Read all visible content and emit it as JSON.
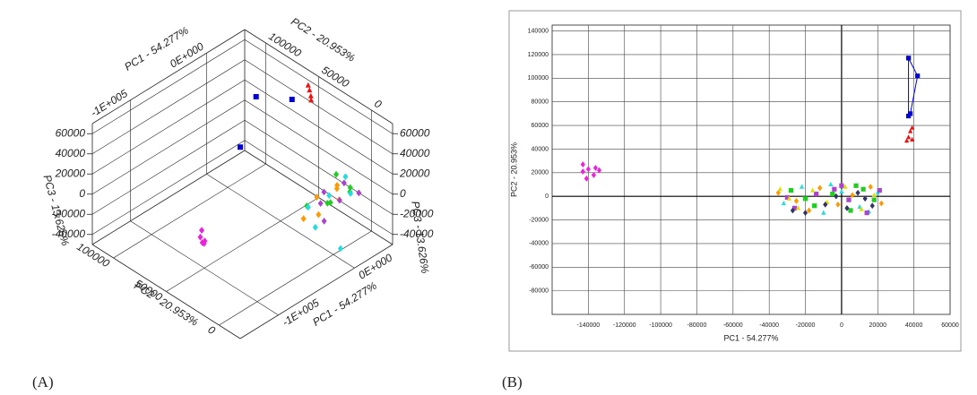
{
  "chart_data": [
    {
      "type": "scatter3d",
      "panel_label": "(A)",
      "xlabel": "PC1 - 54.277%",
      "ylabel": "PC2 - 20.953%",
      "zlabel": "PC3 - 13.626%",
      "xlim": [
        -150000,
        50000
      ],
      "xticks": [
        {
          "value": -100000,
          "label": "-1E+005"
        },
        {
          "value": 0,
          "label": "0E+000"
        }
      ],
      "ylim": [
        -20000,
        120000
      ],
      "yticks": [
        0,
        50000,
        100000
      ],
      "zlim": [
        -50000,
        70000
      ],
      "zticks": [
        -40000,
        -20000,
        0,
        20000,
        40000,
        60000
      ],
      "grid": true,
      "series": [
        {
          "color": "#0000dd",
          "marker": "square",
          "x": [
            40000,
            40000,
            40000
          ],
          "y": [
            117000,
            102000,
            68000
          ],
          "z": [
            -40000,
            20000,
            40000
          ]
        },
        {
          "color": "#ee1111",
          "marker": "triangle",
          "x": [
            38000,
            37000,
            39000,
            36000
          ],
          "y": [
            50000,
            48000,
            52000,
            47000
          ],
          "z": [
            62000,
            58000,
            65000,
            55000
          ]
        },
        {
          "color": "#ee22dd",
          "marker": "diamond",
          "x": [
            -140000,
            -137000,
            -134000,
            -142000,
            -136000
          ],
          "y": [
            25000,
            23000,
            28000,
            20000,
            26000
          ],
          "z": [
            16000,
            12000,
            18000,
            14000,
            8000
          ]
        },
        {
          "color": "#22cc22",
          "marker": "diamond",
          "x": [
            -28000,
            -15000,
            -5000,
            5000,
            12000,
            18000
          ],
          "y": [
            5000,
            -8000,
            2000,
            -12000,
            6000,
            -3000
          ],
          "z": [
            8000,
            14000,
            2000,
            18000,
            20000,
            10000
          ]
        },
        {
          "color": "#22dddd",
          "marker": "diamond",
          "x": [
            -32000,
            -22000,
            -10000,
            0,
            10000,
            20000
          ],
          "y": [
            -6000,
            8000,
            -14000,
            4000,
            -9000,
            3000
          ],
          "z": [
            -4000,
            2000,
            -30000,
            6000,
            12000,
            16000
          ]
        },
        {
          "color": "#ff9900",
          "marker": "diamond",
          "x": [
            -35000,
            -25000,
            -12000,
            -2000,
            6000,
            16000
          ],
          "y": [
            3000,
            -4000,
            7000,
            -7000,
            1000,
            8000
          ],
          "z": [
            0,
            4000,
            8000,
            10000,
            12000,
            6000
          ]
        },
        {
          "color": "#aa44cc",
          "marker": "diamond",
          "x": [
            -26000,
            -14000,
            -4000,
            4000,
            14000,
            21000
          ],
          "y": [
            -10000,
            2000,
            6000,
            -3000,
            -14000,
            5000
          ],
          "z": [
            2000,
            6000,
            10000,
            4000,
            14000,
            8000
          ]
        }
      ]
    },
    {
      "type": "scatter",
      "panel_label": "(B)",
      "xlabel": "PC1 - 54.277%",
      "ylabel": "PC2 - 20.953%",
      "xlim": [
        -160000,
        60000
      ],
      "xticks": [
        -140000,
        -120000,
        -100000,
        -80000,
        -60000,
        -40000,
        -20000,
        0,
        20000,
        40000,
        60000
      ],
      "ylim": [
        -100000,
        145000
      ],
      "yticks": [
        140000,
        120000,
        100000,
        80000,
        60000,
        40000,
        20000,
        0,
        -20000,
        -40000,
        -60000,
        -80000
      ],
      "grid": true,
      "series": [
        {
          "color": "#0000dd",
          "marker": "square",
          "line": true,
          "x": [
            37000,
            42000,
            38000,
            37000,
            37000
          ],
          "y": [
            117000,
            102000,
            70000,
            68000,
            117000
          ]
        },
        {
          "color": "#ee1111",
          "marker": "triangle",
          "x": [
            38000,
            37000,
            39000,
            36000,
            39000
          ],
          "y": [
            55000,
            50000,
            48000,
            47000,
            58000
          ]
        },
        {
          "color": "#ee22dd",
          "marker": "diamond",
          "x": [
            -143000,
            -140000,
            -136000,
            -141000,
            -137000,
            -134000,
            -143000
          ],
          "y": [
            27000,
            23000,
            24000,
            15000,
            18000,
            22000,
            21000
          ]
        },
        {
          "color": "#22cc22",
          "marker": "square",
          "x": [
            -28000,
            -15000,
            -5000,
            5000,
            12000,
            18000,
            -20000,
            8000
          ],
          "y": [
            5000,
            -8000,
            2000,
            -12000,
            6000,
            -3000,
            -2000,
            9000
          ]
        },
        {
          "color": "#22dddd",
          "marker": "triangle",
          "x": [
            -32000,
            -22000,
            -10000,
            0,
            10000,
            20000,
            -6000,
            15000
          ],
          "y": [
            -6000,
            8000,
            -14000,
            4000,
            -9000,
            3000,
            10000,
            -13000
          ]
        },
        {
          "color": "#ff9900",
          "marker": "diamond",
          "x": [
            -35000,
            -25000,
            -12000,
            -2000,
            6000,
            16000,
            22000,
            -18000
          ],
          "y": [
            3000,
            -4000,
            7000,
            -7000,
            1000,
            8000,
            -6000,
            -12000
          ]
        },
        {
          "color": "#aa44cc",
          "marker": "square",
          "x": [
            -26000,
            -14000,
            -4000,
            4000,
            14000,
            21000,
            -30000,
            0
          ],
          "y": [
            -10000,
            2000,
            6000,
            -3000,
            -14000,
            5000,
            -1000,
            9000
          ]
        },
        {
          "color": "#dddd00",
          "marker": "triangle",
          "x": [
            -34000,
            -29000,
            -24000,
            -8000,
            2000,
            11000,
            18000,
            -16000
          ],
          "y": [
            6000,
            -2000,
            -10000,
            -5000,
            8000,
            -11000,
            1000,
            5000
          ]
        },
        {
          "color": "#333366",
          "marker": "diamond",
          "x": [
            -20000,
            -9000,
            3000,
            9000,
            17000,
            -27000,
            13000,
            -3000
          ],
          "y": [
            -14000,
            -7000,
            -10000,
            3000,
            -8000,
            -12000,
            -2000,
            0
          ]
        }
      ]
    }
  ]
}
